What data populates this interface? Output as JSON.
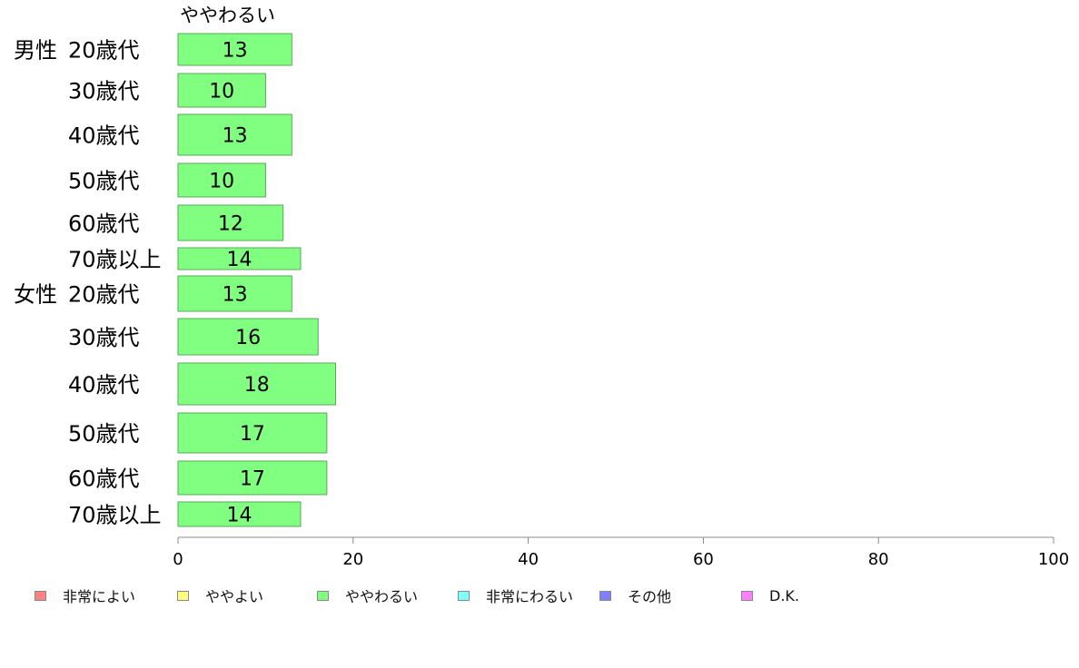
{
  "chart_data": {
    "type": "bar",
    "orientation": "horizontal",
    "series_title": "ややわるい",
    "groups": [
      {
        "label": "男性",
        "categories": [
          "20歳代",
          "30歳代",
          "40歳代",
          "50歳代",
          "60歳代",
          "70歳以上"
        ],
        "values": [
          13,
          10,
          13,
          10,
          12,
          14
        ]
      },
      {
        "label": "女性",
        "categories": [
          "20歳代",
          "30歳代",
          "40歳代",
          "50歳代",
          "60歳代",
          "70歳以上"
        ],
        "values": [
          13,
          16,
          18,
          17,
          17,
          14
        ]
      }
    ],
    "series": [
      {
        "name": "ややわるい",
        "color": "#80ff80"
      }
    ],
    "xlim": [
      0,
      100
    ],
    "xticks": [
      0,
      20,
      40,
      60,
      80,
      100
    ],
    "grid": false,
    "legend": {
      "position": "bottom",
      "entries": [
        {
          "label": "非常によい",
          "color": "#ff8080"
        },
        {
          "label": "ややよい",
          "color": "#ffff80"
        },
        {
          "label": "ややわるい",
          "color": "#80ff80"
        },
        {
          "label": "非常にわるい",
          "color": "#80ffff"
        },
        {
          "label": "その他",
          "color": "#8080ff"
        },
        {
          "label": "D.K.",
          "color": "#ff80ff"
        }
      ]
    }
  }
}
